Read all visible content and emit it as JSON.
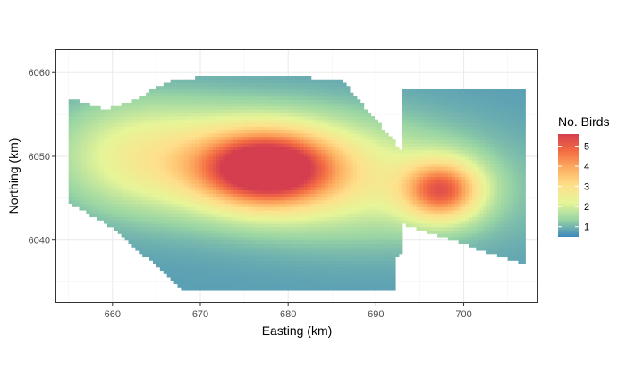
{
  "chart_data": {
    "type": "heatmap",
    "title": "",
    "xlabel": "Easting (km)",
    "ylabel": "Northing (km)",
    "xlim": [
      653.5,
      708.5
    ],
    "ylim": [
      6032.5,
      6062.8
    ],
    "x_ticks": [
      {
        "value": 660,
        "label": "660"
      },
      {
        "value": 670,
        "label": "670"
      },
      {
        "value": 680,
        "label": "680"
      },
      {
        "value": 690,
        "label": "690"
      },
      {
        "value": 700,
        "label": "700"
      }
    ],
    "y_ticks": [
      {
        "value": 6040,
        "label": "6040"
      },
      {
        "value": 6050,
        "label": "6050"
      },
      {
        "value": 6060,
        "label": "6060"
      }
    ],
    "grid": true,
    "legend": {
      "title": "No. Birds",
      "position": "right",
      "range": [
        0.5,
        5.6
      ],
      "breaks": [
        {
          "value": 1,
          "label": "1"
        },
        {
          "value": 2,
          "label": "2"
        },
        {
          "value": 3,
          "label": "3"
        },
        {
          "value": 4,
          "label": "4"
        },
        {
          "value": 5,
          "label": "5"
        }
      ],
      "colors": [
        "#3E87BC",
        "#99D5A4",
        "#E6F598",
        "#FEE08B",
        "#FDAE61",
        "#F46D43",
        "#D53E4F"
      ]
    },
    "density_peaks": [
      {
        "x": 678.2,
        "y": 6048.5,
        "peak": 5.5
      },
      {
        "x": 697.5,
        "y": 6046.0,
        "peak": 4.2
      }
    ],
    "survey_region": {
      "west": [
        655,
        6035,
        6057
      ],
      "east_block": [
        693,
        707,
        6042,
        6058
      ]
    }
  }
}
